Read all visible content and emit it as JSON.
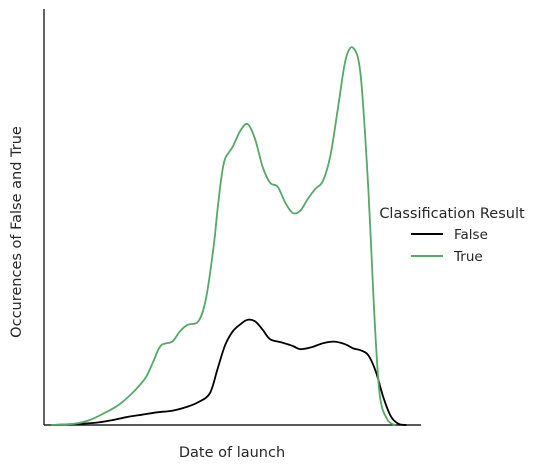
{
  "chart_data": {
    "type": "line",
    "title": "",
    "xlabel": "Date of launch",
    "ylabel": "Occurences of False and True",
    "x_ticks_visible": false,
    "y_ticks_visible": false,
    "grid": false,
    "xlim": [
      0,
      100
    ],
    "ylim": [
      0,
      100
    ],
    "legend": {
      "title": "Classification Result",
      "position": "right"
    },
    "series": [
      {
        "name": "False",
        "color": "#000000",
        "points": [
          [
            2,
            0
          ],
          [
            8,
            0.2
          ],
          [
            14,
            0.6
          ],
          [
            18,
            1.2
          ],
          [
            22,
            2
          ],
          [
            26,
            2.6
          ],
          [
            30,
            3.2
          ],
          [
            34,
            3.6
          ],
          [
            38,
            4.6
          ],
          [
            41,
            5.8
          ],
          [
            44,
            8
          ],
          [
            46,
            14
          ],
          [
            48,
            20
          ],
          [
            50,
            23.5
          ],
          [
            52,
            25.3
          ],
          [
            54,
            26.5
          ],
          [
            56,
            26.1
          ],
          [
            58,
            24
          ],
          [
            60,
            21.6
          ],
          [
            63,
            20.8
          ],
          [
            66,
            19.9
          ],
          [
            68,
            19.1
          ],
          [
            71,
            19.6
          ],
          [
            74,
            20.6
          ],
          [
            77,
            21
          ],
          [
            80,
            20.3
          ],
          [
            82,
            19.3
          ],
          [
            84,
            18.8
          ],
          [
            86,
            17.6
          ],
          [
            88,
            13.5
          ],
          [
            90,
            7
          ],
          [
            92,
            2.2
          ],
          [
            94,
            0.3
          ],
          [
            96,
            0
          ]
        ]
      },
      {
        "name": "True",
        "color": "#55a868",
        "points": [
          [
            2,
            0
          ],
          [
            8,
            0.3
          ],
          [
            12,
            1.2
          ],
          [
            16,
            3
          ],
          [
            20,
            5.2
          ],
          [
            24,
            8.6
          ],
          [
            27,
            12
          ],
          [
            29,
            16
          ],
          [
            31,
            20
          ],
          [
            34,
            21
          ],
          [
            36,
            23.5
          ],
          [
            38,
            25.2
          ],
          [
            41,
            26.2
          ],
          [
            43,
            32
          ],
          [
            45,
            45
          ],
          [
            46,
            54
          ],
          [
            47,
            62
          ],
          [
            48,
            67
          ],
          [
            50,
            70
          ],
          [
            52,
            74
          ],
          [
            54,
            75.8
          ],
          [
            56,
            72
          ],
          [
            58,
            65
          ],
          [
            60,
            61
          ],
          [
            62,
            60
          ],
          [
            64,
            56
          ],
          [
            66,
            53.4
          ],
          [
            68,
            54
          ],
          [
            70,
            57
          ],
          [
            72,
            59.5
          ],
          [
            74,
            61.5
          ],
          [
            76,
            68
          ],
          [
            78,
            80
          ],
          [
            80,
            92
          ],
          [
            82,
            95
          ],
          [
            84,
            88
          ],
          [
            86,
            60
          ],
          [
            87.5,
            30
          ],
          [
            89,
            8
          ],
          [
            91,
            1.5
          ],
          [
            93,
            0
          ]
        ]
      }
    ]
  }
}
